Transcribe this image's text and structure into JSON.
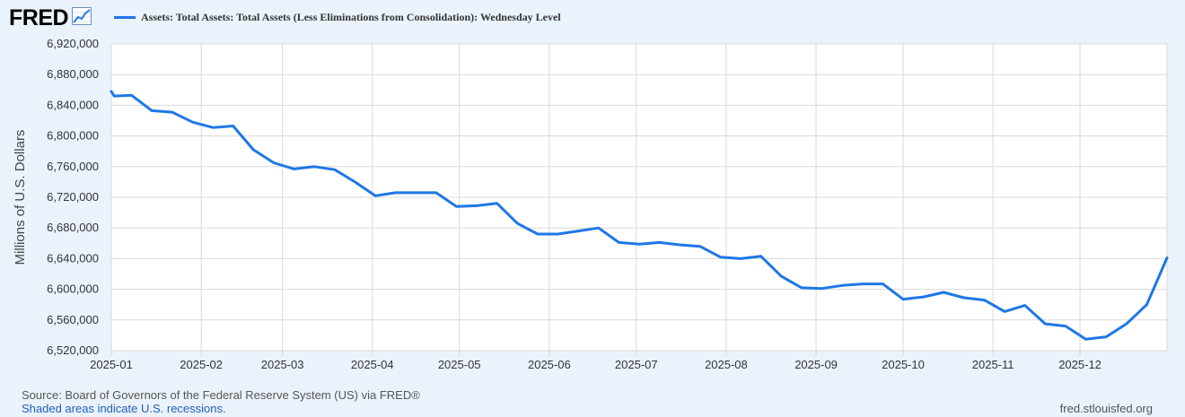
{
  "brand": {
    "logo_text": "FRED",
    "icon": "trend-chart-icon",
    "accent_color": "#1f77e6"
  },
  "footer": {
    "source": "Source: Board of Governors of the Federal Reserve System (US) via FRED®",
    "note": "Shaded areas indicate U.S. recessions.",
    "site": "fred.stlouisfed.org"
  },
  "chart_data": {
    "type": "line",
    "title": "",
    "xlabel": "",
    "ylabel": "Millions of U.S. Dollars",
    "ylim": [
      6520000,
      6920000
    ],
    "yticks": [
      6520000,
      6560000,
      6600000,
      6640000,
      6680000,
      6720000,
      6760000,
      6800000,
      6840000,
      6880000,
      6920000
    ],
    "ytick_labels": [
      "6,520,000",
      "6,560,000",
      "6,600,000",
      "6,640,000",
      "6,680,000",
      "6,720,000",
      "6,760,000",
      "6,800,000",
      "6,840,000",
      "6,880,000",
      "6,920,000"
    ],
    "xlim": [
      "2025-01-01",
      "2025-12-31"
    ],
    "xtick_labels": [
      "2025-01",
      "2025-02",
      "2025-03",
      "2025-04",
      "2025-05",
      "2025-06",
      "2025-07",
      "2025-08",
      "2025-09",
      "2025-10",
      "2025-11",
      "2025-12"
    ],
    "xtick_dates": [
      "2025-01-01",
      "2025-02-01",
      "2025-03-01",
      "2025-04-01",
      "2025-05-01",
      "2025-06-01",
      "2025-07-01",
      "2025-08-01",
      "2025-09-01",
      "2025-10-01",
      "2025-11-01",
      "2025-12-01"
    ],
    "legend_position": "top-left",
    "grid": true,
    "series": [
      {
        "name": "Assets: Total Assets: Total Assets (Less Eliminations from Consolidation): Wednesday Level",
        "color": "#1f77e6",
        "x": [
          "2025-01-01",
          "2025-01-02",
          "2025-01-08",
          "2025-01-15",
          "2025-01-22",
          "2025-01-29",
          "2025-02-05",
          "2025-02-12",
          "2025-02-19",
          "2025-02-26",
          "2025-03-05",
          "2025-03-12",
          "2025-03-19",
          "2025-03-26",
          "2025-04-02",
          "2025-04-09",
          "2025-04-16",
          "2025-04-23",
          "2025-04-30",
          "2025-05-07",
          "2025-05-14",
          "2025-05-21",
          "2025-05-28",
          "2025-06-04",
          "2025-06-11",
          "2025-06-18",
          "2025-06-25",
          "2025-07-02",
          "2025-07-09",
          "2025-07-16",
          "2025-07-23",
          "2025-07-30",
          "2025-08-06",
          "2025-08-13",
          "2025-08-20",
          "2025-08-27",
          "2025-09-03",
          "2025-09-10",
          "2025-09-17",
          "2025-09-24",
          "2025-10-01",
          "2025-10-08",
          "2025-10-15",
          "2025-10-22",
          "2025-10-29",
          "2025-11-05",
          "2025-11-12",
          "2025-11-19",
          "2025-11-26",
          "2025-12-03",
          "2025-12-10",
          "2025-12-17",
          "2025-12-24",
          "2025-12-31"
        ],
        "values": [
          6858000,
          6852000,
          6853000,
          6833000,
          6831000,
          6818000,
          6811000,
          6813000,
          6782000,
          6765000,
          6757000,
          6760000,
          6756000,
          6740000,
          6722000,
          6726000,
          6726000,
          6726000,
          6708000,
          6709000,
          6712000,
          6686000,
          6672000,
          6672000,
          6676000,
          6680000,
          6661000,
          6659000,
          6661000,
          6658000,
          6656000,
          6642000,
          6640000,
          6643000,
          6617000,
          6602000,
          6601000,
          6605000,
          6607000,
          6607000,
          6587000,
          6590000,
          6596000,
          6589000,
          6586000,
          6571000,
          6579000,
          6555000,
          6552000,
          6535000,
          6538000,
          6555000,
          6580000,
          6641000
        ]
      }
    ]
  }
}
